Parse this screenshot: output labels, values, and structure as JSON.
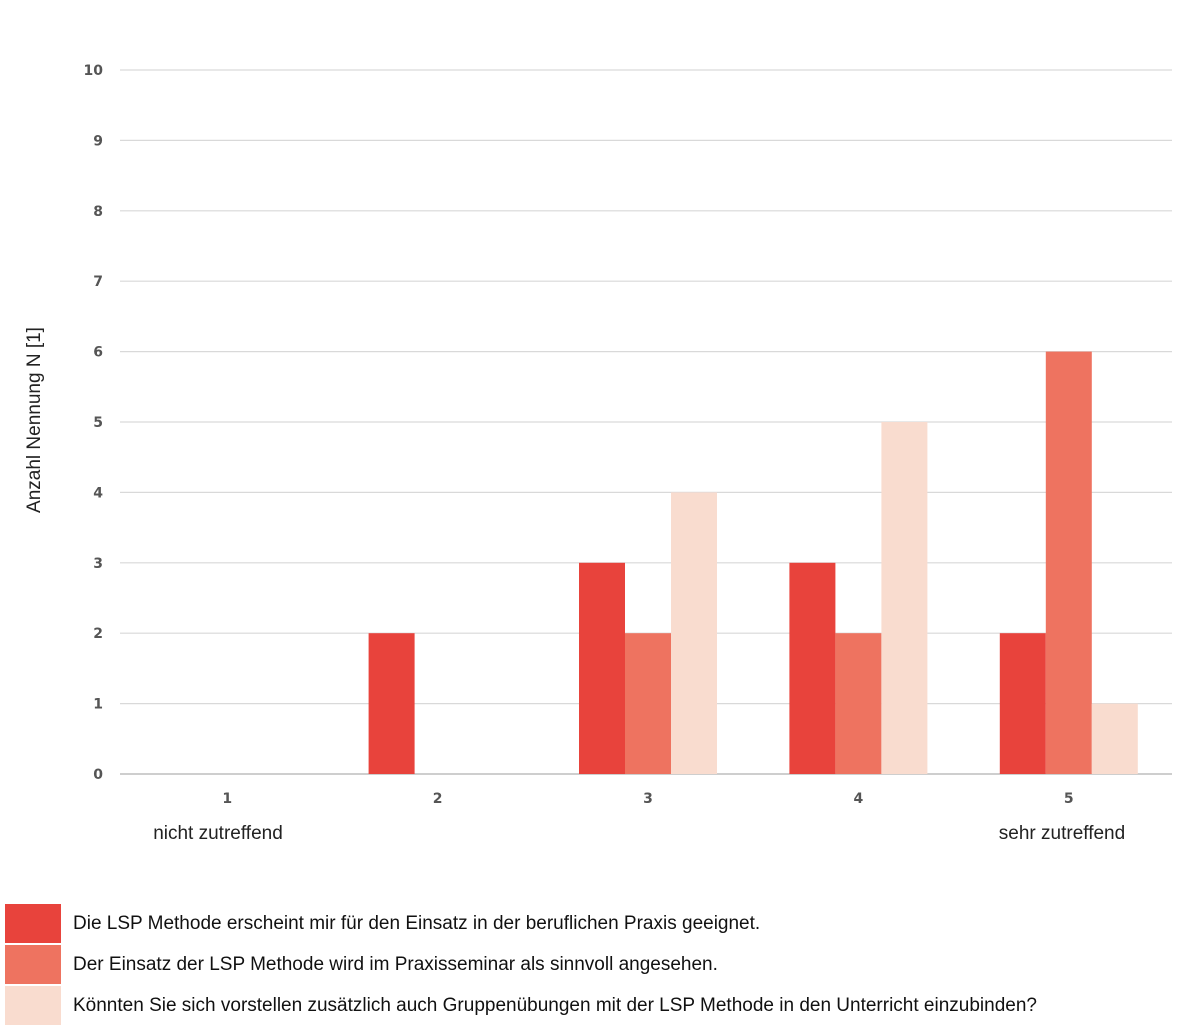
{
  "chart_data": {
    "type": "bar",
    "categories": [
      "1",
      "2",
      "3",
      "4",
      "5"
    ],
    "category_sublabels": {
      "first": "nicht zutreffend",
      "last": "sehr zutreffend"
    },
    "ylabel": "Anzahl Nennung N  [1]",
    "ylim": [
      0,
      10
    ],
    "yticks": [
      0,
      1,
      2,
      3,
      4,
      5,
      6,
      7,
      8,
      9,
      10
    ],
    "grid": true,
    "legend_position": "bottom",
    "series": [
      {
        "name": "Die LSP  Methode erscheint mir für den Einsatz in der beruflichen Praxis geeignet.",
        "values": [
          0,
          2,
          3,
          3,
          2
        ],
        "color": "#e8433c"
      },
      {
        "name": "Der Einsatz der LSP Methode wird im Praxisseminar als sinnvoll angesehen.",
        "values": [
          0,
          0,
          2,
          2,
          6
        ],
        "color": "#ee7360"
      },
      {
        "name": "Könnten Sie sich vorstellen  zusätzlich auch Gruppenübungen mit der LSP Methode in den Unterricht einzubinden?",
        "values": [
          0,
          0,
          4,
          5,
          1
        ],
        "color": "#f9dccf"
      }
    ]
  }
}
